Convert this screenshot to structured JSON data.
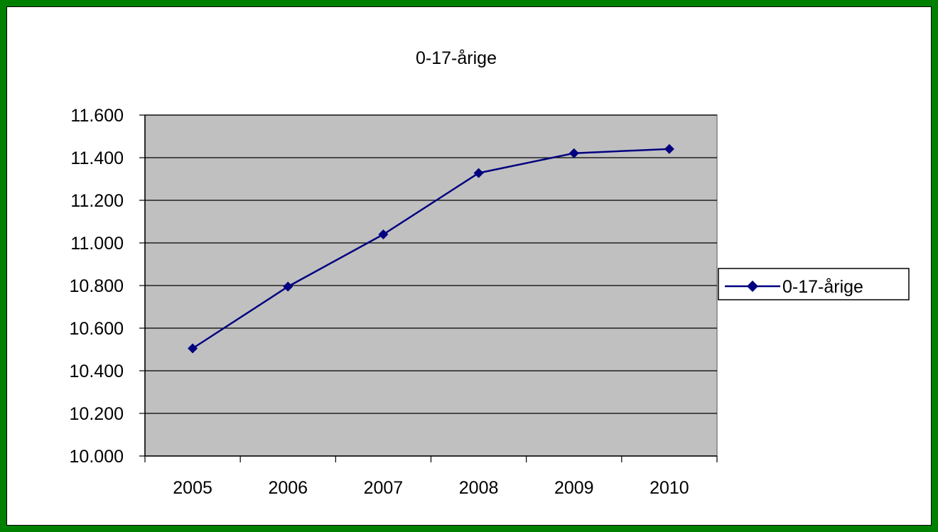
{
  "chart_data": {
    "type": "line",
    "title": "0-17-årige",
    "categories": [
      "2005",
      "2006",
      "2007",
      "2008",
      "2009",
      "2010"
    ],
    "series": [
      {
        "name": "0-17-årige",
        "values": [
          10505,
          10795,
          11040,
          11328,
          11421,
          11441
        ],
        "color": "#000080"
      }
    ],
    "ylim": [
      10000,
      11600
    ],
    "yticks": [
      10000,
      10200,
      10400,
      10600,
      10800,
      11000,
      11200,
      11400,
      11600
    ],
    "ytick_labels": [
      "10.000",
      "10.200",
      "10.400",
      "10.600",
      "10.800",
      "11.000",
      "11.200",
      "11.400",
      "11.600"
    ],
    "grid": true,
    "legend_position": "right",
    "plot_background": "#c0c0c0",
    "frame_color": "#008000"
  }
}
